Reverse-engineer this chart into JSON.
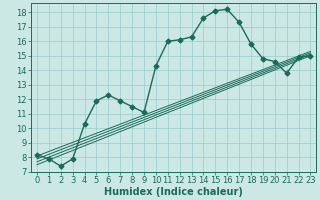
{
  "xlabel": "Humidex (Indice chaleur)",
  "background_color": "#cce8e4",
  "grid_color": "#99cccc",
  "line_color": "#1a6b5a",
  "xlim": [
    -0.5,
    23.5
  ],
  "ylim": [
    7,
    18.6
  ],
  "xticks": [
    0,
    1,
    2,
    3,
    4,
    5,
    6,
    7,
    8,
    9,
    10,
    11,
    12,
    13,
    14,
    15,
    16,
    17,
    18,
    19,
    20,
    21,
    22,
    23
  ],
  "yticks": [
    7,
    8,
    9,
    10,
    11,
    12,
    13,
    14,
    15,
    16,
    17,
    18
  ],
  "main_line_x": [
    0,
    1,
    2,
    3,
    4,
    5,
    6,
    7,
    8,
    9,
    10,
    11,
    12,
    13,
    14,
    15,
    16,
    17,
    18,
    19,
    20,
    21,
    22,
    23
  ],
  "main_line_y": [
    8.2,
    7.9,
    7.4,
    7.9,
    10.3,
    11.9,
    12.3,
    11.9,
    11.5,
    11.1,
    14.3,
    16.0,
    16.1,
    16.3,
    17.6,
    18.1,
    18.2,
    17.3,
    15.8,
    14.8,
    14.6,
    13.8,
    14.9,
    15.0
  ],
  "line2_x": [
    0,
    23
  ],
  "line2_y": [
    7.5,
    15.0
  ],
  "line3_x": [
    0,
    23
  ],
  "line3_y": [
    7.7,
    15.1
  ],
  "line4_x": [
    0,
    23
  ],
  "line4_y": [
    7.9,
    15.2
  ],
  "line5_x": [
    0,
    23
  ],
  "line5_y": [
    8.1,
    15.3
  ],
  "marker_style": "D",
  "marker_size": 2.5,
  "line_width": 1.0,
  "xlabel_fontsize": 7,
  "tick_fontsize": 6
}
